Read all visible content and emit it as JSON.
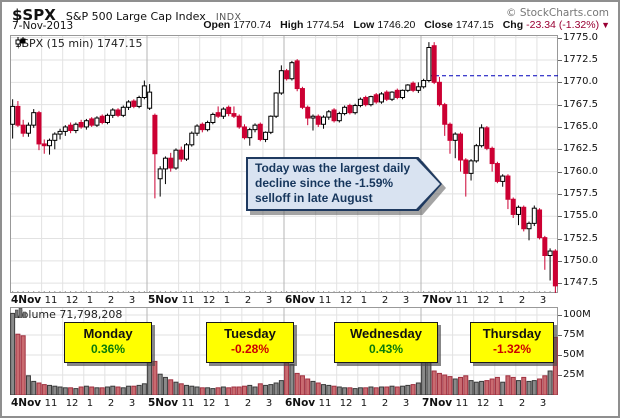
{
  "header": {
    "symbol": "$SPX",
    "name": "S&P 500 Large Cap Index",
    "exchange": "INDX",
    "copyright": "© StockCharts.com",
    "date": "7-Nov-2013",
    "quote": {
      "open_label": "Open",
      "open": "1770.74",
      "high_label": "High",
      "high": "1774.54",
      "low_label": "Low",
      "low": "1746.20",
      "close_label": "Close",
      "close": "1747.15",
      "chg_label": "Chg",
      "chg": "-23.34 (-1.32%)",
      "chg_arrow": "▼"
    }
  },
  "price_panel": {
    "label": "$SPX (15 min) 1747.15"
  },
  "volume_panel": {
    "label": "Volume 71,798,208"
  },
  "annotation": {
    "lines": [
      "Today was the largest daily",
      "decline since the  -1.59%",
      "selloff in late August"
    ]
  },
  "day_boxes": [
    {
      "day": "Monday",
      "pct": "0.36%",
      "dir": "up"
    },
    {
      "day": "Tuesday",
      "pct": "-0.28%",
      "dir": "down"
    },
    {
      "day": "Wednesday",
      "pct": "0.43%",
      "dir": "up"
    },
    {
      "day": "Thursday",
      "pct": "-1.32%",
      "dir": "down"
    }
  ],
  "colors": {
    "candle_up_fill": "#ffffff",
    "candle_up_stroke": "#000000",
    "candle_down": "#cc0033",
    "volume_up_fill": "#8a8a8a",
    "volume_up_stroke": "#3a3a3a",
    "volume_down_fill": "#c96b70",
    "volume_down_stroke": "#a03040",
    "open_line": "#0000bb",
    "grid_minor": "#e2e2e2",
    "grid_day": "#b5b5b5",
    "panel_border": "#999999",
    "up_pct": "#0a7a0a",
    "down_pct": "#cc0000",
    "day_box_bg": "#ffff00",
    "annotation_bg": "#d9e3f1",
    "annotation_border": "#1f3a60"
  },
  "chart_data": {
    "type": "candlestick+volume",
    "title": "$SPX (15 min)",
    "last_price": 1747.15,
    "timeframe_minutes": 15,
    "days": [
      "4Nov",
      "5Nov",
      "6Nov",
      "7Nov"
    ],
    "hour_labels": [
      "11",
      "12",
      "1",
      "2",
      "3"
    ],
    "bars_per_day": 26,
    "price_axis": {
      "min": 1747.5,
      "max": 1775.0,
      "step": 2.5
    },
    "volume_axis": {
      "ticks": [
        100,
        75,
        50,
        25
      ],
      "unit": "M"
    },
    "open_line_value": 1770.74,
    "candles": [
      [
        1765.3,
        1768.1,
        1763.7,
        1767.3
      ],
      [
        1767.3,
        1767.9,
        1765.0,
        1765.2
      ],
      [
        1765.2,
        1765.8,
        1763.9,
        1764.3
      ],
      [
        1764.3,
        1765.5,
        1763.9,
        1765.2
      ],
      [
        1765.2,
        1767.0,
        1764.9,
        1766.6
      ],
      [
        1766.6,
        1766.8,
        1762.4,
        1763.1
      ],
      [
        1763.1,
        1763.6,
        1762.0,
        1762.9
      ],
      [
        1762.9,
        1763.7,
        1761.9,
        1763.5
      ],
      [
        1763.5,
        1764.4,
        1762.5,
        1764.2
      ],
      [
        1764.2,
        1764.8,
        1763.6,
        1764.5
      ],
      [
        1764.5,
        1765.2,
        1764.0,
        1765.0
      ],
      [
        1765.2,
        1765.5,
        1764.3,
        1764.6
      ],
      [
        1764.6,
        1765.5,
        1764.3,
        1765.3
      ],
      [
        1765.5,
        1765.8,
        1764.8,
        1765.0
      ],
      [
        1765.0,
        1765.9,
        1764.7,
        1765.7
      ],
      [
        1765.9,
        1766.1,
        1765.0,
        1765.2
      ],
      [
        1765.2,
        1766.2,
        1765.0,
        1766.0
      ],
      [
        1766.2,
        1766.4,
        1765.3,
        1765.5
      ],
      [
        1765.5,
        1766.5,
        1765.3,
        1766.3
      ],
      [
        1766.3,
        1767.1,
        1766.0,
        1766.9
      ],
      [
        1766.9,
        1767.1,
        1766.1,
        1766.3
      ],
      [
        1766.3,
        1767.4,
        1766.1,
        1767.2
      ],
      [
        1767.2,
        1768.0,
        1766.9,
        1767.8
      ],
      [
        1767.9,
        1768.1,
        1767.1,
        1767.3
      ],
      [
        1767.3,
        1768.5,
        1767.1,
        1768.3
      ],
      [
        1768.3,
        1770.2,
        1768.1,
        1769.6
      ],
      [
        1767.1,
        1769.8,
        1766.9,
        1768.9
      ],
      [
        1766.3,
        1766.5,
        1757.0,
        1762.0
      ],
      [
        1759.2,
        1760.6,
        1757.2,
        1760.3
      ],
      [
        1760.3,
        1761.7,
        1758.6,
        1761.5
      ],
      [
        1761.5,
        1762.1,
        1760.0,
        1760.4
      ],
      [
        1760.4,
        1762.6,
        1760.2,
        1762.4
      ],
      [
        1762.4,
        1762.8,
        1761.1,
        1761.4
      ],
      [
        1761.4,
        1763.2,
        1761.2,
        1763.0
      ],
      [
        1763.0,
        1764.5,
        1762.8,
        1764.3
      ],
      [
        1764.3,
        1765.3,
        1764.0,
        1765.1
      ],
      [
        1765.3,
        1765.5,
        1764.4,
        1764.7
      ],
      [
        1764.7,
        1765.7,
        1764.5,
        1765.5
      ],
      [
        1765.5,
        1766.6,
        1765.3,
        1766.4
      ],
      [
        1766.6,
        1767.3,
        1766.0,
        1766.2
      ],
      [
        1766.2,
        1767.2,
        1765.9,
        1767.0
      ],
      [
        1767.2,
        1767.4,
        1766.2,
        1766.5
      ],
      [
        1766.5,
        1767.3,
        1766.0,
        1766.2
      ],
      [
        1766.2,
        1766.4,
        1764.8,
        1765.0
      ],
      [
        1765.0,
        1765.3,
        1763.6,
        1763.8
      ],
      [
        1763.8,
        1764.9,
        1762.9,
        1764.7
      ],
      [
        1764.7,
        1765.4,
        1764.4,
        1765.2
      ],
      [
        1765.3,
        1765.5,
        1763.4,
        1763.6
      ],
      [
        1763.6,
        1764.5,
        1763.3,
        1764.4
      ],
      [
        1764.4,
        1766.3,
        1764.2,
        1766.2
      ],
      [
        1766.2,
        1768.9,
        1766.0,
        1768.8
      ],
      [
        1768.8,
        1771.9,
        1768.6,
        1771.3
      ],
      [
        1771.3,
        1771.5,
        1770.2,
        1770.4
      ],
      [
        1770.4,
        1772.4,
        1770.2,
        1772.2
      ],
      [
        1772.4,
        1772.6,
        1769.0,
        1769.3
      ],
      [
        1769.3,
        1769.5,
        1767.0,
        1767.2
      ],
      [
        1767.2,
        1767.4,
        1765.2,
        1766.0
      ],
      [
        1766.0,
        1766.4,
        1764.6,
        1766.2
      ],
      [
        1766.2,
        1766.4,
        1765.0,
        1765.3
      ],
      [
        1765.3,
        1766.3,
        1764.8,
        1766.1
      ],
      [
        1766.1,
        1766.9,
        1765.8,
        1766.7
      ],
      [
        1766.9,
        1767.1,
        1765.5,
        1765.7
      ],
      [
        1765.7,
        1766.7,
        1765.5,
        1766.5
      ],
      [
        1766.5,
        1767.4,
        1766.3,
        1767.2
      ],
      [
        1767.4,
        1767.6,
        1766.4,
        1766.6
      ],
      [
        1766.6,
        1767.6,
        1766.4,
        1767.4
      ],
      [
        1767.4,
        1768.3,
        1767.2,
        1768.1
      ],
      [
        1768.3,
        1768.5,
        1767.3,
        1767.5
      ],
      [
        1767.5,
        1768.5,
        1767.3,
        1768.4
      ],
      [
        1768.6,
        1768.8,
        1767.6,
        1767.8
      ],
      [
        1767.8,
        1768.9,
        1767.6,
        1768.7
      ],
      [
        1768.9,
        1769.1,
        1767.9,
        1768.1
      ],
      [
        1768.1,
        1769.0,
        1767.9,
        1768.9
      ],
      [
        1769.1,
        1769.3,
        1768.1,
        1768.3
      ],
      [
        1768.3,
        1769.2,
        1768.1,
        1769.1
      ],
      [
        1769.1,
        1769.8,
        1768.9,
        1769.7
      ],
      [
        1769.9,
        1770.1,
        1768.9,
        1769.1
      ],
      [
        1769.1,
        1770.0,
        1768.8,
        1769.5
      ],
      [
        1769.5,
        1770.4,
        1769.3,
        1770.2
      ],
      [
        1770.2,
        1774.5,
        1770.0,
        1773.9
      ],
      [
        1774.1,
        1774.5,
        1769.8,
        1770.0
      ],
      [
        1770.0,
        1770.6,
        1767.3,
        1767.5
      ],
      [
        1767.5,
        1767.7,
        1764.0,
        1765.3
      ],
      [
        1765.3,
        1765.5,
        1762.0,
        1763.5
      ],
      [
        1763.5,
        1764.4,
        1761.5,
        1764.2
      ],
      [
        1764.2,
        1764.4,
        1760.0,
        1761.3
      ],
      [
        1761.3,
        1761.5,
        1757.2,
        1759.8
      ],
      [
        1759.8,
        1761.4,
        1759.0,
        1761.2
      ],
      [
        1761.2,
        1763.1,
        1761.0,
        1762.9
      ],
      [
        1762.9,
        1765.3,
        1762.7,
        1764.9
      ],
      [
        1764.9,
        1765.1,
        1762.4,
        1762.6
      ],
      [
        1762.6,
        1762.8,
        1760.0,
        1760.9
      ],
      [
        1760.9,
        1761.1,
        1758.7,
        1758.9
      ],
      [
        1758.9,
        1759.7,
        1758.3,
        1759.5
      ],
      [
        1759.5,
        1759.7,
        1755.8,
        1756.9
      ],
      [
        1756.9,
        1757.1,
        1754.8,
        1755.2
      ],
      [
        1755.2,
        1756.2,
        1754.0,
        1756.0
      ],
      [
        1756.0,
        1756.2,
        1753.3,
        1753.6
      ],
      [
        1753.6,
        1754.4,
        1752.3,
        1754.2
      ],
      [
        1754.2,
        1756.2,
        1753.9,
        1755.9
      ],
      [
        1755.7,
        1755.9,
        1752.4,
        1752.6
      ],
      [
        1752.6,
        1752.8,
        1749.0,
        1750.6
      ],
      [
        1750.6,
        1751.4,
        1747.8,
        1751.1
      ],
      [
        1751.1,
        1751.3,
        1746.2,
        1747.2
      ]
    ],
    "volume_millions": [
      102,
      76,
      74,
      24,
      17,
      15,
      13,
      12,
      11,
      10,
      9,
      9,
      8,
      10,
      11,
      10,
      9,
      9,
      10,
      11,
      10,
      9,
      11,
      11,
      12,
      14,
      50,
      42,
      26,
      22,
      19,
      16,
      14,
      12,
      11,
      10,
      9,
      9,
      8,
      9,
      10,
      9,
      10,
      10,
      11,
      12,
      10,
      14,
      12,
      13,
      15,
      18,
      52,
      38,
      27,
      24,
      20,
      17,
      15,
      13,
      12,
      11,
      10,
      9,
      9,
      8,
      9,
      9,
      10,
      9,
      10,
      10,
      11,
      10,
      11,
      12,
      13,
      15,
      57,
      48,
      30,
      27,
      25,
      23,
      20,
      22,
      24,
      18,
      16,
      17,
      18,
      20,
      22,
      16,
      24,
      22,
      18,
      22,
      17,
      18,
      20,
      24,
      30,
      72
    ]
  }
}
